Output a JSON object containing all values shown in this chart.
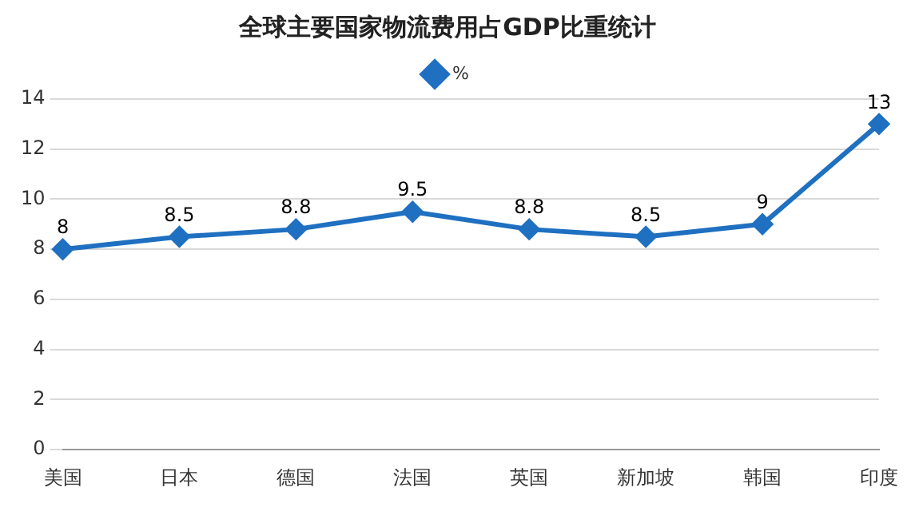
{
  "chart_data": {
    "type": "line",
    "title": "全球主要国家物流费用占GDP比重统计",
    "categories": [
      "美国",
      "日本",
      "德国",
      "法国",
      "英国",
      "新加坡",
      "韩国",
      "印度"
    ],
    "series": [
      {
        "name": "%",
        "color": "#1f70c1",
        "values": [
          8,
          8.5,
          8.8,
          9.5,
          8.8,
          8.5,
          9,
          13
        ]
      }
    ],
    "ylim": [
      0,
      14
    ],
    "yticks": [
      0,
      2,
      4,
      6,
      8,
      10,
      12,
      14
    ],
    "grid": "y",
    "legend": "top",
    "marker": "diamond",
    "line_style": "solid",
    "data_labels": true
  }
}
